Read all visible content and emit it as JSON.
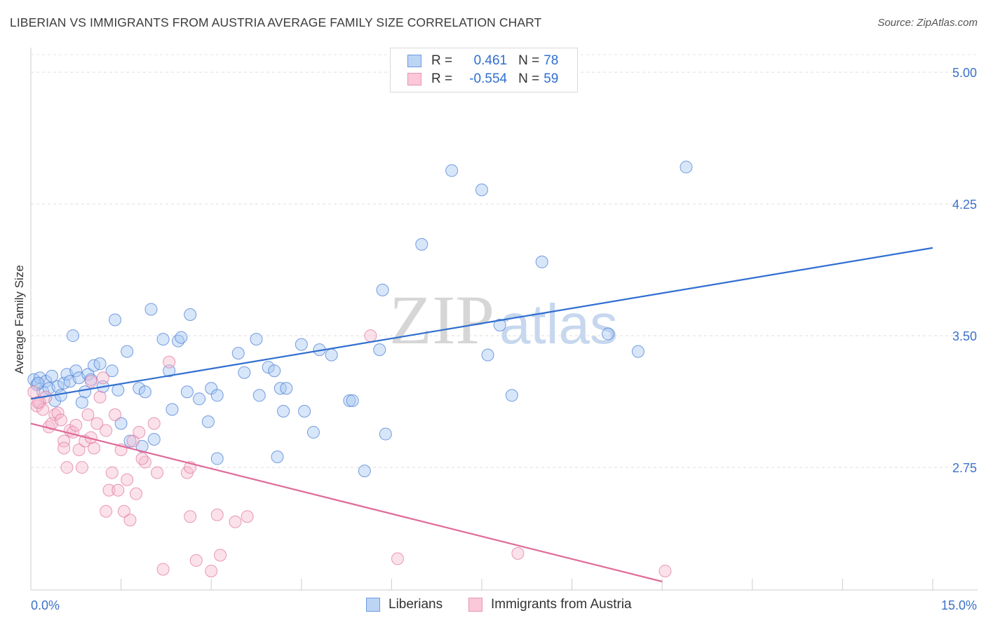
{
  "header": {
    "title": "LIBERIAN VS IMMIGRANTS FROM AUSTRIA AVERAGE FAMILY SIZE CORRELATION CHART",
    "source": "Source: ZipAtlas.com"
  },
  "watermark": {
    "zip": "ZIP",
    "atlas": "atlas"
  },
  "legend": {
    "rows": [
      {
        "r_label": "R =",
        "r_value": "0.461",
        "n_label": "N =",
        "n_value": "78",
        "color": "#4a7fd4",
        "fill": "#a9c8f3"
      },
      {
        "r_label": "R =",
        "r_value": "-0.554",
        "n_label": "N =",
        "n_value": "59",
        "color": "#e07aa0",
        "fill": "#f7bcd0"
      }
    ]
  },
  "bottom_legend": {
    "items": [
      {
        "label": "Liberians"
      },
      {
        "label": "Immigrants from Austria"
      }
    ]
  },
  "chart_data": {
    "type": "scatter",
    "title": "LIBERIAN VS IMMIGRANTS FROM AUSTRIA AVERAGE FAMILY SIZE CORRELATION CHART",
    "xlabel": "",
    "ylabel": "Average Family Size",
    "xlim": [
      0,
      15
    ],
    "ylim": [
      2.1,
      5.1
    ],
    "x_tick_labels": [
      "0.0%",
      "15.0%"
    ],
    "y_ticks": [
      5.0,
      4.25,
      3.5,
      2.75
    ],
    "y_tick_labels": [
      "5.00",
      "4.25",
      "3.50",
      "2.75"
    ],
    "grid": true,
    "legend_position": "top-center",
    "series": [
      {
        "name": "Liberians",
        "color": "#4a7fd4",
        "fill": "#a9c8f3",
        "trend": {
          "x": [
            0,
            15
          ],
          "y": [
            3.14,
            4.0
          ]
        },
        "points": [
          [
            0.05,
            3.25
          ],
          [
            0.1,
            3.22
          ],
          [
            0.15,
            3.26
          ],
          [
            0.2,
            3.18
          ],
          [
            0.25,
            3.24
          ],
          [
            0.3,
            3.2
          ],
          [
            0.35,
            3.27
          ],
          [
            0.4,
            3.13
          ],
          [
            0.45,
            3.21
          ],
          [
            0.5,
            3.16
          ],
          [
            0.55,
            3.23
          ],
          [
            0.6,
            3.28
          ],
          [
            0.65,
            3.24
          ],
          [
            0.7,
            3.5
          ],
          [
            0.75,
            3.3
          ],
          [
            0.8,
            3.26
          ],
          [
            0.9,
            3.18
          ],
          [
            0.95,
            3.28
          ],
          [
            1.0,
            3.25
          ],
          [
            1.05,
            3.33
          ],
          [
            1.15,
            3.34
          ],
          [
            1.2,
            3.21
          ],
          [
            1.35,
            3.3
          ],
          [
            1.4,
            3.59
          ],
          [
            1.45,
            3.19
          ],
          [
            1.5,
            3.0
          ],
          [
            1.6,
            3.41
          ],
          [
            1.65,
            2.9
          ],
          [
            1.8,
            3.2
          ],
          [
            1.85,
            2.87
          ],
          [
            1.9,
            3.18
          ],
          [
            2.05,
            2.91
          ],
          [
            2.0,
            3.65
          ],
          [
            2.2,
            3.48
          ],
          [
            2.3,
            3.3
          ],
          [
            2.35,
            3.08
          ],
          [
            2.45,
            3.47
          ],
          [
            2.5,
            3.49
          ],
          [
            2.6,
            3.18
          ],
          [
            2.65,
            3.62
          ],
          [
            2.8,
            3.14
          ],
          [
            2.95,
            3.01
          ],
          [
            3.0,
            3.2
          ],
          [
            3.1,
            3.16
          ],
          [
            3.1,
            2.8
          ],
          [
            3.45,
            3.4
          ],
          [
            3.55,
            3.29
          ],
          [
            3.75,
            3.48
          ],
          [
            3.8,
            3.16
          ],
          [
            3.95,
            3.32
          ],
          [
            4.05,
            3.3
          ],
          [
            4.1,
            2.81
          ],
          [
            4.15,
            3.2
          ],
          [
            4.2,
            3.07
          ],
          [
            4.25,
            3.2
          ],
          [
            4.5,
            3.45
          ],
          [
            4.55,
            3.07
          ],
          [
            4.7,
            2.95
          ],
          [
            4.8,
            3.42
          ],
          [
            5.0,
            3.39
          ],
          [
            5.3,
            3.13
          ],
          [
            5.35,
            3.13
          ],
          [
            5.55,
            2.73
          ],
          [
            5.8,
            3.42
          ],
          [
            5.85,
            3.76
          ],
          [
            5.9,
            2.94
          ],
          [
            6.5,
            4.02
          ],
          [
            7.0,
            4.44
          ],
          [
            7.5,
            4.33
          ],
          [
            7.6,
            3.39
          ],
          [
            7.8,
            3.56
          ],
          [
            8.0,
            3.16
          ],
          [
            8.5,
            3.92
          ],
          [
            9.6,
            3.51
          ],
          [
            10.1,
            3.41
          ],
          [
            10.9,
            4.46
          ],
          [
            0.12,
            3.23
          ],
          [
            0.85,
            3.12
          ]
        ]
      },
      {
        "name": "Immigrants from Austria",
        "color": "#e07aa0",
        "fill": "#f7bcd0",
        "trend": {
          "x": [
            0,
            10.5
          ],
          "y": [
            3.0,
            2.1
          ]
        },
        "points": [
          [
            0.05,
            3.18
          ],
          [
            0.1,
            3.1
          ],
          [
            0.15,
            3.12
          ],
          [
            0.2,
            3.08
          ],
          [
            0.25,
            3.15
          ],
          [
            0.3,
            2.98
          ],
          [
            0.35,
            3.0
          ],
          [
            0.4,
            3.05
          ],
          [
            0.45,
            3.06
          ],
          [
            0.5,
            3.02
          ],
          [
            0.55,
            2.9
          ],
          [
            0.6,
            2.75
          ],
          [
            0.65,
            2.96
          ],
          [
            0.7,
            2.95
          ],
          [
            0.75,
            2.99
          ],
          [
            0.8,
            2.85
          ],
          [
            0.85,
            2.75
          ],
          [
            0.9,
            2.9
          ],
          [
            0.95,
            3.05
          ],
          [
            1.0,
            3.24
          ],
          [
            1.05,
            2.86
          ],
          [
            1.1,
            3.0
          ],
          [
            1.15,
            3.15
          ],
          [
            1.2,
            3.26
          ],
          [
            1.25,
            2.5
          ],
          [
            1.3,
            2.62
          ],
          [
            1.35,
            2.72
          ],
          [
            1.4,
            3.05
          ],
          [
            1.45,
            2.62
          ],
          [
            1.5,
            2.85
          ],
          [
            1.55,
            2.5
          ],
          [
            1.6,
            2.68
          ],
          [
            1.65,
            2.45
          ],
          [
            1.7,
            2.9
          ],
          [
            1.75,
            2.6
          ],
          [
            1.8,
            2.95
          ],
          [
            1.9,
            2.78
          ],
          [
            2.05,
            3.0
          ],
          [
            2.1,
            2.72
          ],
          [
            2.2,
            2.17
          ],
          [
            2.3,
            3.35
          ],
          [
            2.6,
            2.72
          ],
          [
            2.65,
            2.75
          ],
          [
            2.65,
            2.47
          ],
          [
            2.75,
            2.22
          ],
          [
            3.0,
            2.16
          ],
          [
            3.1,
            2.48
          ],
          [
            3.15,
            2.25
          ],
          [
            3.4,
            2.44
          ],
          [
            3.6,
            2.47
          ],
          [
            5.65,
            3.5
          ],
          [
            6.1,
            2.23
          ],
          [
            8.1,
            2.26
          ],
          [
            10.55,
            2.16
          ],
          [
            0.12,
            3.12
          ],
          [
            0.55,
            2.86
          ],
          [
            1.0,
            2.92
          ],
          [
            1.25,
            2.96
          ],
          [
            1.85,
            2.8
          ]
        ]
      }
    ]
  }
}
